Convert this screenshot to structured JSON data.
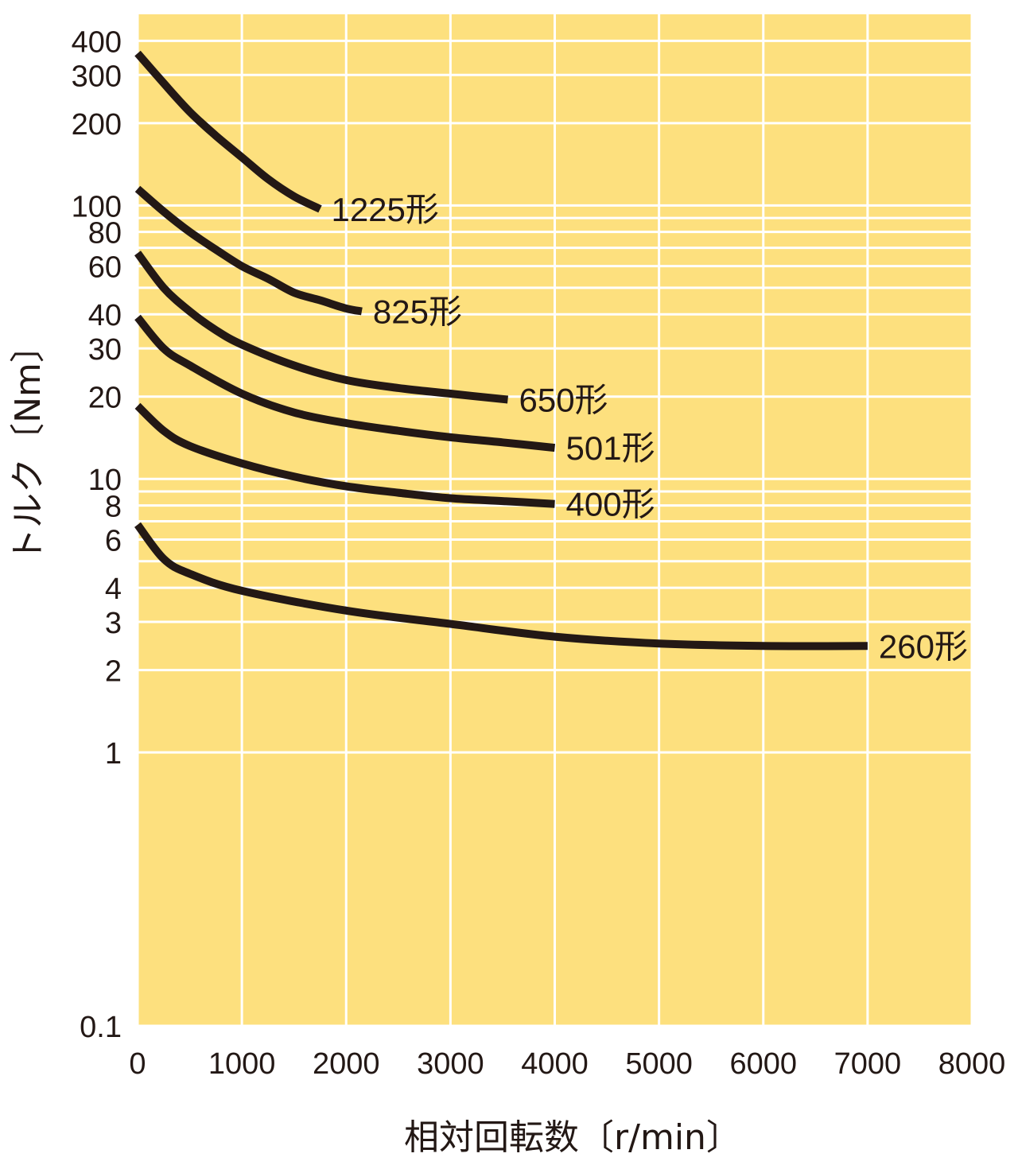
{
  "chart_data": {
    "type": "line",
    "xlabel": "相対回転数〔r/min〕",
    "ylabel": "トルク〔Nm〕",
    "xlim": [
      0,
      8000
    ],
    "xscale": "linear",
    "yscale": "log",
    "ylim": [
      0.1,
      500
    ],
    "grid": true,
    "legend": "inline-end-labels",
    "colors": {
      "background": "#fde07e",
      "grid": "#ffffff",
      "line": "#231815",
      "text": "#231815"
    },
    "x_ticks": [
      0,
      1000,
      2000,
      3000,
      4000,
      5000,
      6000,
      7000,
      8000
    ],
    "x_tick_labels": [
      "0",
      "1000",
      "2000",
      "3000",
      "4000",
      "5000",
      "6000",
      "7000",
      "8000"
    ],
    "y_ticks": [
      0.1,
      1,
      2,
      3,
      4,
      6,
      8,
      10,
      20,
      30,
      40,
      60,
      80,
      100,
      200,
      300,
      400
    ],
    "y_tick_labels": [
      "0.1",
      "1",
      "2",
      "3",
      "4",
      "6",
      "8",
      "10",
      "20",
      "30",
      "40",
      "60",
      "80",
      "100",
      "200",
      "300",
      "400"
    ],
    "y_minor_gridlines": [
      5,
      7,
      9,
      50,
      70,
      90
    ],
    "series": [
      {
        "name": "1225形",
        "x": [
          0,
          250,
          500,
          750,
          1000,
          1250,
          1500,
          1750
        ],
        "y": [
          360,
          280,
          220,
          180,
          150,
          125,
          108,
          97
        ]
      },
      {
        "name": "825形",
        "x": [
          0,
          250,
          500,
          750,
          1000,
          1250,
          1500,
          1750,
          2000,
          2150
        ],
        "y": [
          115,
          95,
          80,
          69,
          60,
          54,
          48,
          45,
          42,
          41
        ]
      },
      {
        "name": "650形",
        "x": [
          0,
          250,
          500,
          750,
          1000,
          1500,
          2000,
          2500,
          3000,
          3550
        ],
        "y": [
          67,
          50,
          41,
          35,
          31,
          26,
          23,
          21.5,
          20.5,
          19.5
        ]
      },
      {
        "name": "501形",
        "x": [
          0,
          250,
          500,
          1000,
          1500,
          2000,
          2500,
          3000,
          3500,
          4000
        ],
        "y": [
          39,
          30,
          26,
          20.5,
          17.5,
          16,
          15,
          14.2,
          13.6,
          13
        ]
      },
      {
        "name": "400形",
        "x": [
          0,
          250,
          500,
          1000,
          1500,
          2000,
          2500,
          3000,
          3500,
          4000
        ],
        "y": [
          18.5,
          15,
          13.2,
          11.4,
          10.2,
          9.4,
          8.9,
          8.5,
          8.3,
          8.1
        ]
      },
      {
        "name": "260形",
        "x": [
          0,
          250,
          500,
          1000,
          2000,
          3000,
          4000,
          5000,
          6000,
          7000
        ],
        "y": [
          6.8,
          5.1,
          4.5,
          3.9,
          3.3,
          2.95,
          2.65,
          2.5,
          2.45,
          2.45
        ]
      }
    ]
  }
}
